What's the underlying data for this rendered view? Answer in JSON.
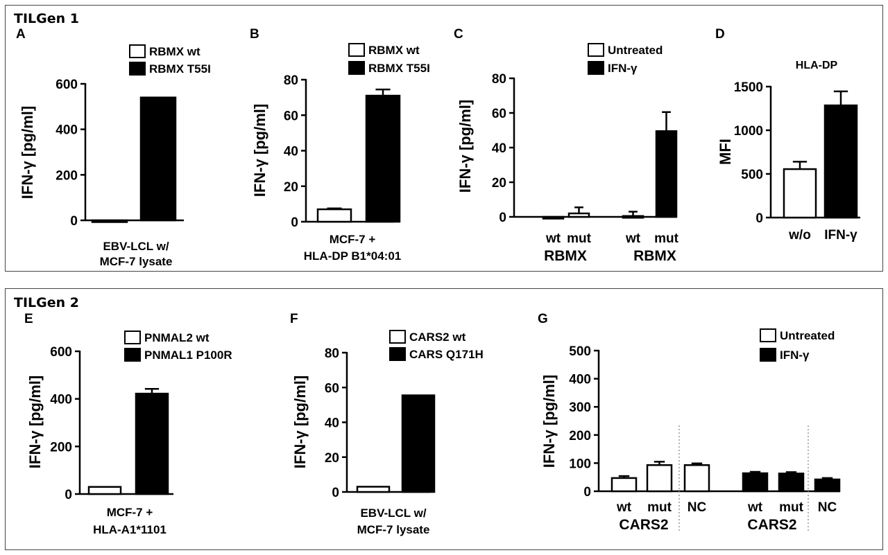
{
  "groups": [
    {
      "title": "TILGen 1"
    },
    {
      "title": "TILGen 2"
    }
  ],
  "colors": {
    "filled": "#000000",
    "open": "#ffffff",
    "stroke": "#000000",
    "divider": "#999999"
  },
  "chart_data": [
    {
      "panel": "A",
      "type": "bar",
      "categories": [
        "RBMX wt",
        "RBMX T55I"
      ],
      "values": [
        -5,
        540
      ],
      "errors": [
        0,
        0
      ],
      "fills": [
        "open",
        "filled"
      ],
      "ylabel": "IFN-γ [pg/ml]",
      "ylim": [
        0,
        600
      ],
      "yticks": [
        0,
        200,
        400,
        600
      ],
      "xlabel_lines": [
        "EBV-LCL w/",
        "MCF-7 lysate"
      ],
      "legend": [
        {
          "label": "RBMX wt",
          "fill": "open"
        },
        {
          "label": "RBMX T55I",
          "fill": "filled"
        }
      ]
    },
    {
      "panel": "B",
      "type": "bar",
      "categories": [
        "RBMX wt",
        "RBMX T55I"
      ],
      "values": [
        7,
        71
      ],
      "errors": [
        0.5,
        3.5
      ],
      "fills": [
        "open",
        "filled"
      ],
      "ylabel": "IFN-γ [pg/ml]",
      "ylim": [
        0,
        80
      ],
      "yticks": [
        0,
        20,
        40,
        60,
        80
      ],
      "xlabel_lines": [
        "MCF-7 +",
        "HLA-DP B1*04:01"
      ],
      "legend": [
        {
          "label": "RBMX wt",
          "fill": "open"
        },
        {
          "label": "RBMX T55I",
          "fill": "filled"
        }
      ]
    },
    {
      "panel": "C",
      "type": "bar",
      "categories": [
        "wt",
        "mut",
        "wt",
        "mut"
      ],
      "values": [
        -1,
        2,
        0.5,
        49.5
      ],
      "errors": [
        0,
        3.5,
        2.5,
        11
      ],
      "fills": [
        "open",
        "open",
        "filled",
        "filled"
      ],
      "ylabel": "IFN-γ [pg/ml]",
      "ylim": [
        0,
        80
      ],
      "yticks": [
        0,
        20,
        40,
        60,
        80
      ],
      "group_labels": [
        "RBMX",
        "RBMX"
      ],
      "legend": [
        {
          "label": "Untreated",
          "fill": "open"
        },
        {
          "label": "IFN-γ",
          "fill": "filled"
        }
      ]
    },
    {
      "panel": "D",
      "type": "bar",
      "title": "HLA-DP",
      "categories": [
        "w/o",
        "IFN-γ"
      ],
      "values": [
        555,
        1285
      ],
      "errors": [
        85,
        160
      ],
      "fills": [
        "open",
        "filled"
      ],
      "ylabel": "MFI",
      "ylim": [
        0,
        1500
      ],
      "yticks": [
        0,
        500,
        1000,
        1500
      ]
    },
    {
      "panel": "E",
      "type": "bar",
      "categories": [
        "PNMAL2 wt",
        "PNMAL1 P100R"
      ],
      "values": [
        30,
        422
      ],
      "errors": [
        0,
        20
      ],
      "fills": [
        "open",
        "filled"
      ],
      "ylabel": "IFN-γ [pg/ml]",
      "ylim": [
        0,
        600
      ],
      "yticks": [
        0,
        200,
        400,
        600
      ],
      "xlabel_lines": [
        "MCF-7 +",
        "HLA-A1*1101"
      ],
      "legend": [
        {
          "label": "PNMAL2 wt",
          "fill": "open"
        },
        {
          "label": "PNMAL1 P100R",
          "fill": "filled"
        }
      ]
    },
    {
      "panel": "F",
      "type": "bar",
      "categories": [
        "CARS2 wt",
        "CARS Q171H"
      ],
      "values": [
        3,
        55.5
      ],
      "errors": [
        0,
        0
      ],
      "fills": [
        "open",
        "filled"
      ],
      "ylabel": "IFN-γ [pg/ml]",
      "ylim": [
        0,
        80
      ],
      "yticks": [
        0,
        20,
        40,
        60,
        80
      ],
      "xlabel_lines": [
        "EBV-LCL w/",
        "MCF-7 lysate"
      ],
      "legend": [
        {
          "label": "CARS2 wt",
          "fill": "open"
        },
        {
          "label": "CARS Q171H",
          "fill": "filled"
        }
      ]
    },
    {
      "panel": "G",
      "type": "bar",
      "categories": [
        "wt",
        "mut",
        "NC",
        "wt",
        "mut",
        "NC"
      ],
      "values": [
        47,
        93,
        93,
        64,
        63,
        42
      ],
      "errors": [
        7,
        12,
        6,
        5,
        5,
        5
      ],
      "fills": [
        "open",
        "open",
        "open",
        "filled",
        "filled",
        "filled"
      ],
      "ylabel": "IFN-γ [pg/ml]",
      "ylim": [
        0,
        500
      ],
      "yticks": [
        0,
        100,
        200,
        300,
        400,
        500
      ],
      "group_labels": [
        "CARS2",
        "CARS2"
      ],
      "legend": [
        {
          "label": "Untreated",
          "fill": "open"
        },
        {
          "label": "IFN-γ",
          "fill": "filled"
        }
      ]
    }
  ]
}
